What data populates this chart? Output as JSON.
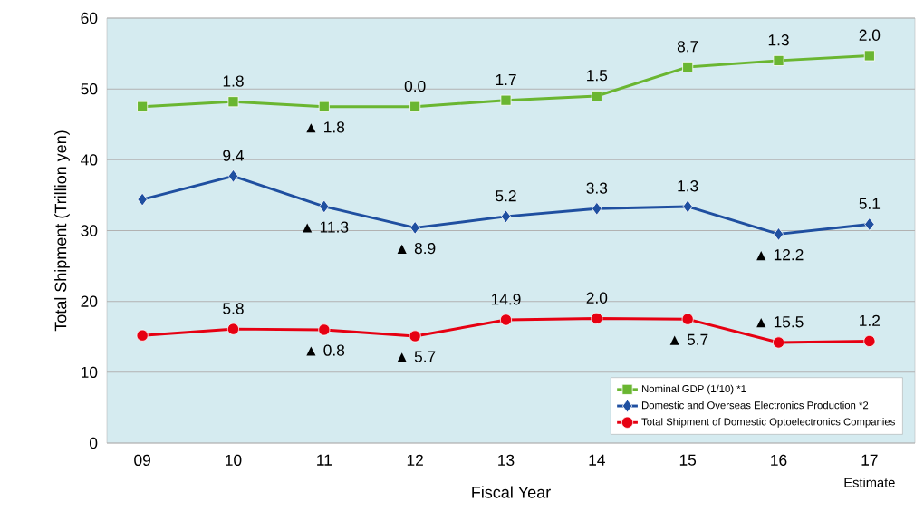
{
  "chart_data": {
    "type": "line",
    "xlabel": "Fiscal Year",
    "ylabel": "Total Shipment (Trillion yen)",
    "categories": [
      "09",
      "10",
      "11",
      "12",
      "13",
      "14",
      "15",
      "16",
      "17"
    ],
    "ylim": [
      0,
      60
    ],
    "yticks": [
      0,
      10,
      20,
      30,
      40,
      50,
      60
    ],
    "grid": "y",
    "legend": "bottom right",
    "line_style": "solid",
    "series": [
      {
        "name": "Nominal GDP (1/10) *1",
        "color": "#6ab631",
        "marker": "square",
        "values": [
          47.5,
          48.2,
          47.5,
          47.5,
          48.4,
          49.0,
          53.1,
          54.0,
          54.7
        ]
      },
      {
        "name": "Domestic and Overseas Electronics Production *2",
        "color": "#1f4fa0",
        "marker": "diamond",
        "values": [
          34.4,
          37.7,
          33.4,
          30.4,
          32.0,
          33.1,
          33.4,
          29.5,
          30.9
        ]
      },
      {
        "name": "Total Shipment of Domestic Optoelectronics Companies",
        "color": "#e60012",
        "marker": "circle",
        "values": [
          15.2,
          16.1,
          16.0,
          15.1,
          17.4,
          17.6,
          17.5,
          14.2,
          14.4
        ]
      }
    ],
    "annotations": [
      "Estimate",
      {
        "text": "1.8",
        "x": "10",
        "y": 48.2
      },
      {
        "text": "▲ 1.8",
        "x": "11",
        "y": 47.5
      },
      {
        "text": "0.0",
        "x": "12",
        "y": 47.5
      },
      {
        "text": "1.7",
        "x": "13",
        "y": 48.4
      },
      {
        "text": "1.5",
        "x": "14",
        "y": 49.0
      },
      {
        "text": "8.7",
        "x": "15",
        "y": 53.1
      },
      {
        "text": "1.3",
        "x": "16",
        "y": 54.0
      },
      {
        "text": "2.0",
        "x": "17",
        "y": 54.7
      },
      {
        "text": "9.4",
        "x": "10",
        "y": 37.7
      },
      {
        "text": "▲ 11.3",
        "x": "11",
        "y": 33.4
      },
      {
        "text": "▲ 8.9",
        "x": "12",
        "y": 30.4
      },
      {
        "text": "5.2",
        "x": "13",
        "y": 32.0
      },
      {
        "text": "3.3",
        "x": "14",
        "y": 33.1
      },
      {
        "text": "1.3",
        "x": "15",
        "y": 33.4
      },
      {
        "text": "▲ 12.2",
        "x": "16",
        "y": 29.5
      },
      {
        "text": "5.1",
        "x": "17",
        "y": 30.9
      },
      {
        "text": "5.8",
        "x": "10",
        "y": 16.1
      },
      {
        "text": "▲ 0.8",
        "x": "11",
        "y": 16.0
      },
      {
        "text": "▲ 5.7",
        "x": "12",
        "y": 15.1
      },
      {
        "text": "14.9",
        "x": "13",
        "y": 17.4
      },
      {
        "text": "2.0",
        "x": "14",
        "y": 17.6
      },
      {
        "text": "▲ 5.7",
        "x": "15",
        "y": 17.5
      },
      {
        "text": "▲ 15.5",
        "x": "16",
        "y": 14.2
      },
      {
        "text": "1.2",
        "x": "17",
        "y": 14.4
      }
    ]
  }
}
